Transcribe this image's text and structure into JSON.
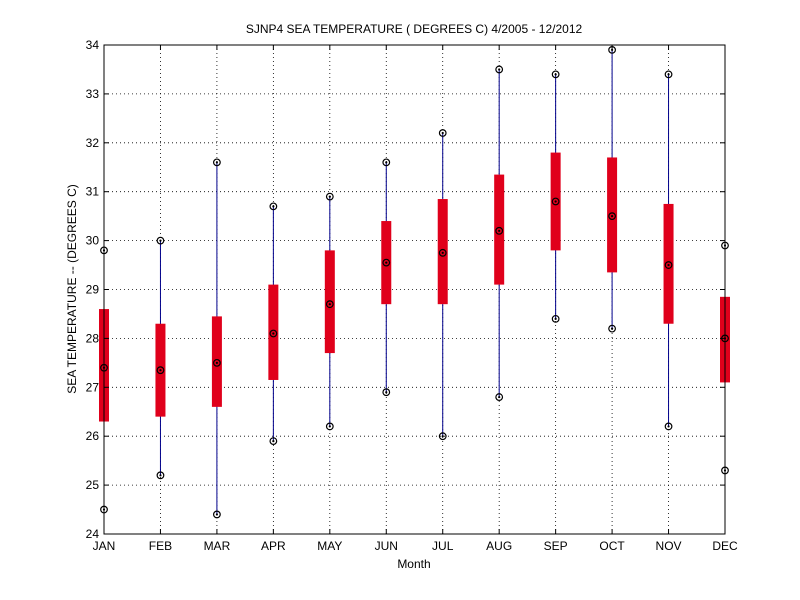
{
  "chart_data": {
    "type": "box",
    "title": "SJNP4  SEA TEMPERATURE ( DEGREES C) 4/2005 - 12/2012",
    "xlabel": "Month",
    "ylabel": "SEA TEMPERATURE -- (DEGREES C)",
    "ylim": [
      24,
      34
    ],
    "yticks": [
      "24",
      "25",
      "26",
      "27",
      "28",
      "29",
      "30",
      "31",
      "32",
      "33",
      "34"
    ],
    "grid": true,
    "categories": [
      "JAN",
      "FEB",
      "MAR",
      "APR",
      "MAY",
      "JUN",
      "JUL",
      "AUG",
      "SEP",
      "OCT",
      "NOV",
      "DEC"
    ],
    "min": [
      24.5,
      25.2,
      24.4,
      25.9,
      26.2,
      26.9,
      26.0,
      26.8,
      28.4,
      28.2,
      26.2,
      25.3
    ],
    "q1": [
      26.3,
      26.4,
      26.6,
      27.15,
      27.7,
      28.7,
      28.7,
      29.1,
      29.8,
      29.35,
      28.3,
      27.1
    ],
    "median": [
      27.4,
      27.35,
      27.5,
      28.1,
      28.7,
      29.55,
      29.75,
      30.2,
      30.8,
      30.5,
      29.5,
      28.0
    ],
    "q3": [
      28.6,
      28.3,
      28.45,
      29.1,
      29.8,
      30.4,
      30.85,
      31.35,
      31.8,
      31.7,
      30.75,
      28.85
    ],
    "max": [
      29.8,
      30.0,
      31.6,
      30.7,
      30.9,
      31.6,
      32.2,
      33.5,
      33.4,
      33.9,
      33.4,
      29.9
    ],
    "colors": {
      "whisker": "#00008B",
      "box": "#E0001B",
      "marker": "#000000",
      "grid": "#000000"
    }
  }
}
